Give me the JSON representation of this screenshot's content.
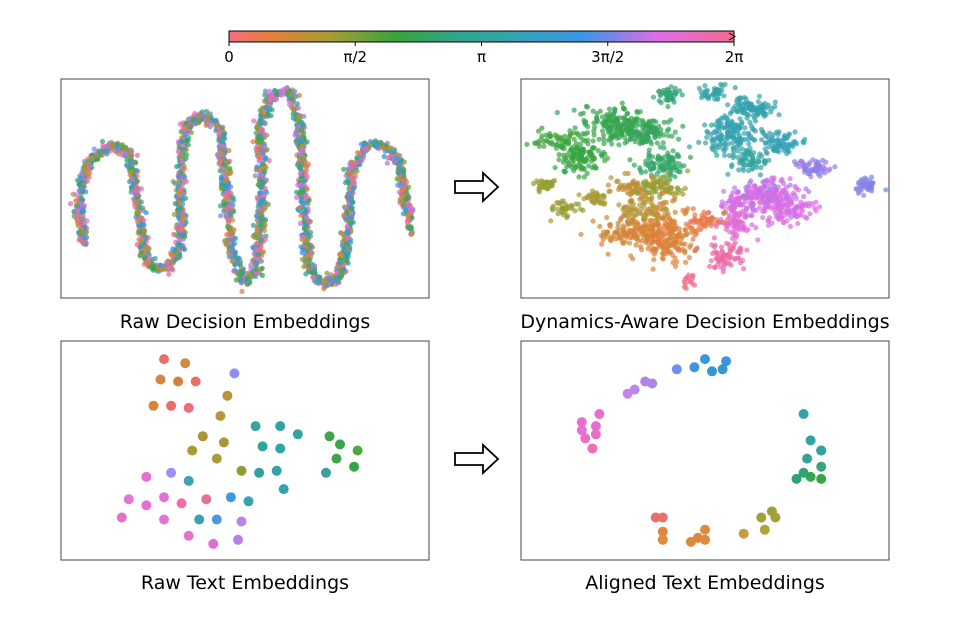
{
  "colorbar": {
    "ticks": [
      "0",
      "π/2",
      "π",
      "3π/2",
      "2π"
    ],
    "tick_values": [
      0,
      1.5708,
      3.1416,
      4.7124,
      6.2832
    ],
    "range": [
      0,
      6.2832
    ],
    "colormap": "hue circle (husl-like): red → orange → olive → green → teal → blue → magenta → red"
  },
  "arrows": [
    "right",
    "right"
  ],
  "chart_data": [
    {
      "type": "scatter",
      "title": "Raw Decision Embeddings",
      "description": "thousands of small points along a wavy serpentine curve with hues mixed randomly",
      "points": []
    },
    {
      "type": "scatter",
      "title": "Dynamics-Aware Decision Embeddings",
      "description": "many small points grouped into hue-sorted clusters",
      "points": []
    },
    {
      "type": "scatter",
      "title": "Raw Text Embeddings",
      "xlim": [
        0,
        100
      ],
      "ylim": [
        0,
        100
      ],
      "points": [
        {
          "x": 27,
          "y": 95,
          "c": "#e8706b"
        },
        {
          "x": 33,
          "y": 93,
          "c": "#d28b3c"
        },
        {
          "x": 47,
          "y": 88,
          "c": "#8e8ff0"
        },
        {
          "x": 26,
          "y": 85,
          "c": "#d6873e"
        },
        {
          "x": 31,
          "y": 84,
          "c": "#d7823c"
        },
        {
          "x": 36,
          "y": 84,
          "c": "#e57166"
        },
        {
          "x": 45,
          "y": 77,
          "c": "#b79437"
        },
        {
          "x": 24,
          "y": 72,
          "c": "#d88538"
        },
        {
          "x": 29,
          "y": 72,
          "c": "#e8706a"
        },
        {
          "x": 34,
          "y": 71,
          "c": "#ec6e78"
        },
        {
          "x": 43,
          "y": 67,
          "c": "#b39738"
        },
        {
          "x": 53,
          "y": 62,
          "c": "#36a49e"
        },
        {
          "x": 60,
          "y": 62,
          "c": "#2ea39f"
        },
        {
          "x": 65,
          "y": 58,
          "c": "#33a3a3"
        },
        {
          "x": 38,
          "y": 57,
          "c": "#aa9438"
        },
        {
          "x": 44,
          "y": 54,
          "c": "#aa9438"
        },
        {
          "x": 74,
          "y": 57,
          "c": "#3fa548"
        },
        {
          "x": 55,
          "y": 52,
          "c": "#2da49c"
        },
        {
          "x": 60,
          "y": 51,
          "c": "#2da49c"
        },
        {
          "x": 77,
          "y": 53,
          "c": "#36a54e"
        },
        {
          "x": 35,
          "y": 50,
          "c": "#a89c35"
        },
        {
          "x": 42,
          "y": 46,
          "c": "#a79b3b"
        },
        {
          "x": 82,
          "y": 50,
          "c": "#4caa40"
        },
        {
          "x": 76,
          "y": 46,
          "c": "#3fa44a"
        },
        {
          "x": 49,
          "y": 40,
          "c": "#8c9d37"
        },
        {
          "x": 54,
          "y": 39,
          "c": "#2fa19f"
        },
        {
          "x": 59,
          "y": 40,
          "c": "#31a2a5"
        },
        {
          "x": 81,
          "y": 42,
          "c": "#33a54b"
        },
        {
          "x": 73,
          "y": 39,
          "c": "#39a1a6"
        },
        {
          "x": 22,
          "y": 37,
          "c": "#e26fd2"
        },
        {
          "x": 29,
          "y": 39,
          "c": "#a08ff2"
        },
        {
          "x": 34,
          "y": 35,
          "c": "#3ba5b0"
        },
        {
          "x": 61,
          "y": 31,
          "c": "#34a2ad"
        },
        {
          "x": 17,
          "y": 26,
          "c": "#e572d9"
        },
        {
          "x": 22,
          "y": 23,
          "c": "#e36fd6"
        },
        {
          "x": 27,
          "y": 27,
          "c": "#e172cf"
        },
        {
          "x": 32,
          "y": 24,
          "c": "#ee6fa8"
        },
        {
          "x": 39,
          "y": 26,
          "c": "#e27193"
        },
        {
          "x": 46,
          "y": 27,
          "c": "#4198dd"
        },
        {
          "x": 51,
          "y": 25,
          "c": "#37a2b2"
        },
        {
          "x": 15,
          "y": 17,
          "c": "#e571c6"
        },
        {
          "x": 27,
          "y": 16,
          "c": "#df75db"
        },
        {
          "x": 37,
          "y": 16,
          "c": "#37a4ad"
        },
        {
          "x": 42,
          "y": 16,
          "c": "#4a98e2"
        },
        {
          "x": 49,
          "y": 15,
          "c": "#b784e8"
        },
        {
          "x": 34,
          "y": 8,
          "c": "#e373c7"
        },
        {
          "x": 41,
          "y": 4,
          "c": "#e06fd4"
        },
        {
          "x": 48,
          "y": 6,
          "c": "#b97ee6"
        }
      ]
    },
    {
      "type": "scatter",
      "title": "Aligned Text Embeddings",
      "xlim": [
        0,
        100
      ],
      "ylim": [
        0,
        100
      ],
      "points": [
        {
          "x": 50,
          "y": 95,
          "c": "#3b96dc"
        },
        {
          "x": 56,
          "y": 94,
          "c": "#3b96dc"
        },
        {
          "x": 55,
          "y": 90,
          "c": "#3497cd"
        },
        {
          "x": 52,
          "y": 89,
          "c": "#3497cd"
        },
        {
          "x": 47,
          "y": 91,
          "c": "#3b96dc"
        },
        {
          "x": 42,
          "y": 90,
          "c": "#6d8ff2"
        },
        {
          "x": 33,
          "y": 84,
          "c": "#b084ea"
        },
        {
          "x": 35,
          "y": 83,
          "c": "#b084ea"
        },
        {
          "x": 30,
          "y": 80,
          "c": "#b887ed"
        },
        {
          "x": 28,
          "y": 78,
          "c": "#c983e8"
        },
        {
          "x": 20,
          "y": 68,
          "c": "#e96dcf"
        },
        {
          "x": 15,
          "y": 64,
          "c": "#e96dcf"
        },
        {
          "x": 19,
          "y": 62,
          "c": "#e96dcf"
        },
        {
          "x": 15,
          "y": 60,
          "c": "#e66ed9"
        },
        {
          "x": 16,
          "y": 56,
          "c": "#ea6fc0"
        },
        {
          "x": 19,
          "y": 58,
          "c": "#e86fca"
        },
        {
          "x": 18,
          "y": 51,
          "c": "#ed6fb5"
        },
        {
          "x": 78,
          "y": 68,
          "c": "#35a4a8"
        },
        {
          "x": 80,
          "y": 55,
          "c": "#31a3a0"
        },
        {
          "x": 83,
          "y": 50,
          "c": "#33a3a0"
        },
        {
          "x": 83,
          "y": 50,
          "c": "#33a3a0"
        },
        {
          "x": 79,
          "y": 46,
          "c": "#32a395"
        },
        {
          "x": 83,
          "y": 42,
          "c": "#36a47d"
        },
        {
          "x": 78,
          "y": 39,
          "c": "#2fa27c"
        },
        {
          "x": 80,
          "y": 37,
          "c": "#38a450"
        },
        {
          "x": 83,
          "y": 36,
          "c": "#3aa44b"
        },
        {
          "x": 76,
          "y": 36,
          "c": "#2fa36f"
        },
        {
          "x": 69,
          "y": 20,
          "c": "#9ba038"
        },
        {
          "x": 70,
          "y": 17,
          "c": "#a2a139"
        },
        {
          "x": 66,
          "y": 17,
          "c": "#a2a139"
        },
        {
          "x": 67,
          "y": 11,
          "c": "#b3a13b"
        },
        {
          "x": 61,
          "y": 9,
          "c": "#c49e3d"
        },
        {
          "x": 50,
          "y": 11,
          "c": "#d98d3c"
        },
        {
          "x": 48,
          "y": 7,
          "c": "#df853a"
        },
        {
          "x": 46,
          "y": 5,
          "c": "#e0883b"
        },
        {
          "x": 50,
          "y": 6,
          "c": "#e0883b"
        },
        {
          "x": 38,
          "y": 10,
          "c": "#e2853f"
        },
        {
          "x": 38,
          "y": 6,
          "c": "#e08b41"
        },
        {
          "x": 36,
          "y": 17,
          "c": "#e86f6f"
        },
        {
          "x": 38,
          "y": 17,
          "c": "#e86f6f"
        }
      ]
    }
  ]
}
